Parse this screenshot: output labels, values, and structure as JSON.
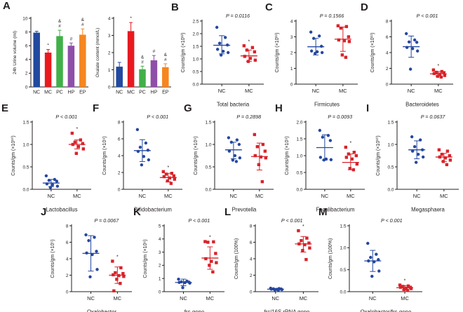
{
  "figure": {
    "panel_letters": [
      "A",
      "B",
      "C",
      "D",
      "E",
      "F",
      "G",
      "H",
      "I",
      "J",
      "K",
      "L",
      "M"
    ]
  },
  "colors": {
    "nc_blue": "#2149a0",
    "mc_red": "#d8232a",
    "pc_green": "#41b049",
    "hp_purple": "#8e4fa8",
    "ep_orange": "#f6861f",
    "axis": "#231f20"
  },
  "chart_data": [
    {
      "panel": "A",
      "type": "bar",
      "ylabel": "24h Urine volume (ml)",
      "ylim": [
        0,
        10
      ],
      "yticks": [
        "0",
        "2",
        "4",
        "6",
        "8",
        "10"
      ],
      "categories": [
        "NC",
        "MC",
        "PC",
        "HP",
        "EP"
      ],
      "values": [
        7.9,
        5.0,
        7.4,
        6.0,
        7.6
      ],
      "errors": [
        0.2,
        0.45,
        0.85,
        0.4,
        0.85
      ],
      "annotations": [
        [],
        [
          "*"
        ],
        [
          "&",
          "#"
        ],
        [
          "#"
        ],
        [
          "&",
          "#"
        ]
      ],
      "colors": [
        "#2149a0",
        "#e8191f",
        "#41b049",
        "#8e4fa8",
        "#f6861f"
      ]
    },
    {
      "panel": "A",
      "type": "bar",
      "ylabel": "Oxalate content (mmol/L)",
      "ylim": [
        0,
        4
      ],
      "yticks": [
        "0",
        "1",
        "2",
        "3",
        "4"
      ],
      "categories": [
        "NC",
        "MC",
        "PC",
        "HP",
        "EP"
      ],
      "values": [
        1.18,
        3.25,
        1.03,
        1.55,
        1.15
      ],
      "errors": [
        0.25,
        0.5,
        0.18,
        0.28,
        0.2
      ],
      "annotations": [
        [],
        [
          "*"
        ],
        [
          "&",
          "#"
        ],
        [
          "#"
        ],
        [
          "&",
          "#"
        ]
      ],
      "colors": [
        "#2149a0",
        "#e8191f",
        "#41b049",
        "#8e4fa8",
        "#f6861f"
      ]
    },
    {
      "panel": "B",
      "type": "scatter",
      "title": "Total bacteria",
      "p_label": "P = 0.0116",
      "ylabel": "Counts/gm (×10¹²)",
      "ylim": [
        0,
        2.5
      ],
      "yticks": [
        "0.0",
        "0.5",
        "1.0",
        "1.5",
        "2.0",
        "2.5"
      ],
      "groups": [
        {
          "label": "NC",
          "color": "#25479f",
          "marker": "circle",
          "star": false,
          "points": [
            2.25,
            1.85,
            1.62,
            1.55,
            1.38,
            1.3,
            1.25,
            1.15
          ],
          "mean": 1.54,
          "err_hi": 1.92,
          "err_lo": 1.2
        },
        {
          "label": "MC",
          "color": "#d8232a",
          "marker": "square",
          "star": true,
          "points": [
            1.52,
            1.45,
            1.35,
            1.28,
            1.1,
            1.02,
            0.95,
            0.9
          ],
          "mean": 1.12,
          "err_hi": 1.35,
          "err_lo": 0.9
        }
      ]
    },
    {
      "panel": "C",
      "type": "scatter",
      "title": "Firmicutes",
      "p_label": "P = 0.1566",
      "ylabel": "Counts/gm (×10¹¹)",
      "ylim": [
        0,
        4
      ],
      "yticks": [
        "0",
        "1",
        "2",
        "3",
        "4"
      ],
      "groups": [
        {
          "label": "NC",
          "color": "#25479f",
          "marker": "circle",
          "star": false,
          "points": [
            3.3,
            3.05,
            2.9,
            2.4,
            2.1,
            2.05,
            2.0,
            1.95
          ],
          "mean": 2.37,
          "err_hi": 2.9,
          "err_lo": 1.85
        },
        {
          "label": "MC",
          "color": "#d8232a",
          "marker": "square",
          "star": false,
          "points": [
            3.7,
            3.65,
            3.55,
            3.0,
            2.8,
            2.75,
            2.7,
            1.85,
            1.7
          ],
          "mean": 2.85,
          "err_hi": 3.62,
          "err_lo": 2.08
        }
      ]
    },
    {
      "panel": "D",
      "type": "scatter",
      "title": "Bacteroidetes",
      "p_label": "P < 0.001",
      "ylabel": "Counts/gm (×10¹¹)",
      "ylim": [
        0,
        8
      ],
      "yticks": [
        "0",
        "2",
        "4",
        "6",
        "8"
      ],
      "groups": [
        {
          "label": "NC",
          "color": "#25479f",
          "marker": "circle",
          "star": false,
          "points": [
            6.4,
            5.6,
            5.35,
            5.3,
            4.65,
            4.5,
            4.2,
            1.9
          ],
          "mean": 4.75,
          "err_hi": 6.1,
          "err_lo": 3.4
        },
        {
          "label": "MC",
          "color": "#d8232a",
          "marker": "square",
          "star": true,
          "points": [
            1.8,
            1.6,
            1.5,
            1.45,
            1.35,
            1.25,
            1.1,
            1.0,
            0.9
          ],
          "mean": 1.3,
          "err_hi": 1.6,
          "err_lo": 1.0
        }
      ]
    },
    {
      "panel": "E",
      "type": "scatter",
      "title": "Lactobacillus",
      "p_label": "P < 0.001",
      "ylabel": "Counts/gm (×10¹⁰)",
      "ylim": [
        0,
        1.5
      ],
      "yticks": [
        "0.0",
        "0.5",
        "1.0",
        "1.5"
      ],
      "groups": [
        {
          "label": "NC",
          "color": "#25479f",
          "marker": "circle",
          "star": false,
          "points": [
            0.3,
            0.22,
            0.2,
            0.18,
            0.12,
            0.1,
            0.07,
            0.04
          ],
          "mean": 0.14,
          "err_hi": 0.22,
          "err_lo": 0.06
        },
        {
          "label": "MC",
          "color": "#d8232a",
          "marker": "square",
          "star": true,
          "points": [
            1.25,
            1.1,
            1.05,
            1.02,
            1.0,
            0.95,
            0.9,
            0.8
          ],
          "mean": 1.0,
          "err_hi": 1.1,
          "err_lo": 0.9
        }
      ]
    },
    {
      "panel": "F",
      "type": "scatter",
      "title": "Bifidobacterium",
      "p_label": "P < 0.001",
      "ylabel": "Counts/gm (×10⁹)",
      "ylim": [
        0,
        8
      ],
      "yticks": [
        "0",
        "2",
        "4",
        "6",
        "8"
      ],
      "groups": [
        {
          "label": "NC",
          "color": "#25479f",
          "marker": "circle",
          "star": false,
          "points": [
            7.1,
            5.5,
            5.0,
            4.65,
            4.5,
            3.9,
            3.5,
            2.9
          ],
          "mean": 4.6,
          "err_hi": 5.9,
          "err_lo": 3.3
        },
        {
          "label": "MC",
          "color": "#d8232a",
          "marker": "square",
          "star": true,
          "points": [
            2.1,
            1.9,
            1.8,
            1.6,
            1.5,
            1.35,
            1.2,
            1.0,
            0.7
          ],
          "mean": 1.4,
          "err_hi": 1.9,
          "err_lo": 0.9
        }
      ]
    },
    {
      "panel": "G",
      "type": "scatter",
      "title": "Prevotella",
      "p_label": "P = 0.2898",
      "ylabel": "Counts/gm (×10⁹)",
      "ylim": [
        0,
        1.5
      ],
      "yticks": [
        "0.0",
        "0.5",
        "1.0",
        "1.5"
      ],
      "groups": [
        {
          "label": "NC",
          "color": "#25479f",
          "marker": "circle",
          "star": false,
          "points": [
            1.15,
            1.1,
            1.05,
            1.0,
            0.85,
            0.75,
            0.7,
            0.65,
            0.62
          ],
          "mean": 0.88,
          "err_hi": 1.05,
          "err_lo": 0.68
        },
        {
          "label": "MC",
          "color": "#d8232a",
          "marker": "square",
          "star": false,
          "points": [
            1.22,
            1.0,
            0.95,
            0.85,
            0.75,
            0.72,
            0.7,
            0.55,
            0.17
          ],
          "mean": 0.73,
          "err_hi": 1.03,
          "err_lo": 0.43
        }
      ]
    },
    {
      "panel": "H",
      "type": "scatter",
      "title": "Fecalibacterium",
      "p_label": "P = 0.0093",
      "ylabel": "Counts/gm (×10⁹)",
      "ylim": [
        0,
        2.0
      ],
      "yticks": [
        "0.0",
        "0.5",
        "1.0",
        "1.5",
        "2.0"
      ],
      "groups": [
        {
          "label": "NC",
          "color": "#25479f",
          "marker": "circle",
          "star": false,
          "points": [
            1.75,
            1.6,
            1.55,
            1.45,
            0.95,
            0.9,
            0.88,
            0.87
          ],
          "mean": 1.24,
          "err_hi": 1.62,
          "err_lo": 0.87
        },
        {
          "label": "MC",
          "color": "#d8232a",
          "marker": "square",
          "star": true,
          "points": [
            1.25,
            1.1,
            1.05,
            1.0,
            0.95,
            0.9,
            0.75,
            0.62,
            0.58
          ],
          "mean": 0.8,
          "err_hi": 1.05,
          "err_lo": 0.58
        }
      ]
    },
    {
      "panel": "I",
      "type": "scatter",
      "title": "Megasphaera",
      "p_label": "P = 0.0637",
      "ylabel": "Counts/gm (×10¹⁰)",
      "ylim": [
        0,
        1.5
      ],
      "yticks": [
        "0.0",
        "0.5",
        "1.0",
        "1.5"
      ],
      "groups": [
        {
          "label": "NC",
          "color": "#25479f",
          "marker": "circle",
          "star": false,
          "points": [
            1.17,
            1.1,
            0.95,
            0.88,
            0.85,
            0.78,
            0.72,
            0.6
          ],
          "mean": 0.88,
          "err_hi": 1.08,
          "err_lo": 0.68
        },
        {
          "label": "MC",
          "color": "#d8232a",
          "marker": "square",
          "star": false,
          "points": [
            0.88,
            0.85,
            0.78,
            0.75,
            0.72,
            0.7,
            0.65,
            0.62,
            0.55
          ],
          "mean": 0.72,
          "err_hi": 0.8,
          "err_lo": 0.62
        }
      ]
    },
    {
      "panel": "J",
      "type": "scatter",
      "title": "Oxalobacter",
      "p_label": "P = 0.0067",
      "ylabel": "Counts/gm (×10⁵)",
      "ylim": [
        0,
        8
      ],
      "yticks": [
        "0",
        "2",
        "4",
        "6",
        "8"
      ],
      "groups": [
        {
          "label": "NC",
          "color": "#25479f",
          "marker": "circle",
          "star": false,
          "points": [
            6.9,
            6.6,
            6.2,
            4.9,
            4.7,
            4.5,
            2.7,
            1.8
          ],
          "mean": 4.65,
          "err_hi": 6.8,
          "err_lo": 2.5
        },
        {
          "label": "MC",
          "color": "#d8232a",
          "marker": "square",
          "star": true,
          "points": [
            3.7,
            2.9,
            2.3,
            2.2,
            2.05,
            1.95,
            1.85,
            1.5,
            1.0,
            0.1
          ],
          "mean": 2.0,
          "err_hi": 3.0,
          "err_lo": 1.0
        }
      ]
    },
    {
      "panel": "K",
      "type": "scatter",
      "title": "frc-gene",
      "p_label": "P < 0.001",
      "ylabel": "Counts/gm (×10⁶)",
      "ylim": [
        0,
        5
      ],
      "yticks": [
        "0",
        "1",
        "2",
        "3",
        "4",
        "5"
      ],
      "groups": [
        {
          "label": "NC",
          "color": "#25479f",
          "marker": "circle",
          "star": false,
          "points": [
            0.95,
            0.8,
            0.75,
            0.72,
            0.7,
            0.68,
            0.65,
            0.3
          ],
          "mean": 0.7,
          "err_hi": 0.95,
          "err_lo": 0.45
        },
        {
          "label": "MC",
          "color": "#d8232a",
          "marker": "square",
          "star": true,
          "points": [
            3.8,
            3.78,
            3.75,
            2.9,
            2.5,
            2.3,
            2.2,
            2.0,
            1.5
          ],
          "mean": 2.55,
          "err_hi": 3.4,
          "err_lo": 1.7
        }
      ]
    },
    {
      "panel": "L",
      "type": "scatter",
      "title": "frc/16S rRNA gene",
      "p_label": "P < 0.001",
      "ylabel": "Counts/gm (100%)",
      "ylim": [
        0,
        8
      ],
      "yticks": [
        "0",
        "2",
        "4",
        "6",
        "8"
      ],
      "groups": [
        {
          "label": "NC",
          "color": "#25479f",
          "marker": "circle",
          "star": false,
          "points": [
            0.42,
            0.38,
            0.35,
            0.32,
            0.3,
            0.28,
            0.25,
            0.22,
            0.2
          ],
          "mean": 0.3,
          "err_hi": 0.4,
          "err_lo": 0.2
        },
        {
          "label": "MC",
          "color": "#d8232a",
          "marker": "square",
          "star": true,
          "points": [
            7.4,
            6.5,
            6.2,
            5.9,
            5.8,
            5.7,
            5.3,
            5.0,
            3.9
          ],
          "mean": 5.8,
          "err_hi": 6.7,
          "err_lo": 4.8
        }
      ]
    },
    {
      "panel": "M",
      "type": "scatter",
      "title": "Oxalobacter/frc-gene",
      "p_label": "P < 0.001",
      "ylabel": "Counts/gm (100%)",
      "ylim": [
        0,
        1.5
      ],
      "yticks": [
        "0.0",
        "0.5",
        "1.0",
        "1.5"
      ],
      "groups": [
        {
          "label": "NC",
          "color": "#25479f",
          "marker": "circle",
          "star": false,
          "points": [
            1.1,
            0.85,
            0.78,
            0.73,
            0.7,
            0.68,
            0.47,
            0.35
          ],
          "mean": 0.7,
          "err_hi": 0.94,
          "err_lo": 0.46
        },
        {
          "label": "MC",
          "color": "#d8232a",
          "marker": "square",
          "star": true,
          "points": [
            0.15,
            0.13,
            0.12,
            0.1,
            0.1,
            0.08,
            0.07,
            0.05,
            0.03
          ],
          "mean": 0.09,
          "err_hi": 0.14,
          "err_lo": 0.04
        }
      ]
    }
  ]
}
